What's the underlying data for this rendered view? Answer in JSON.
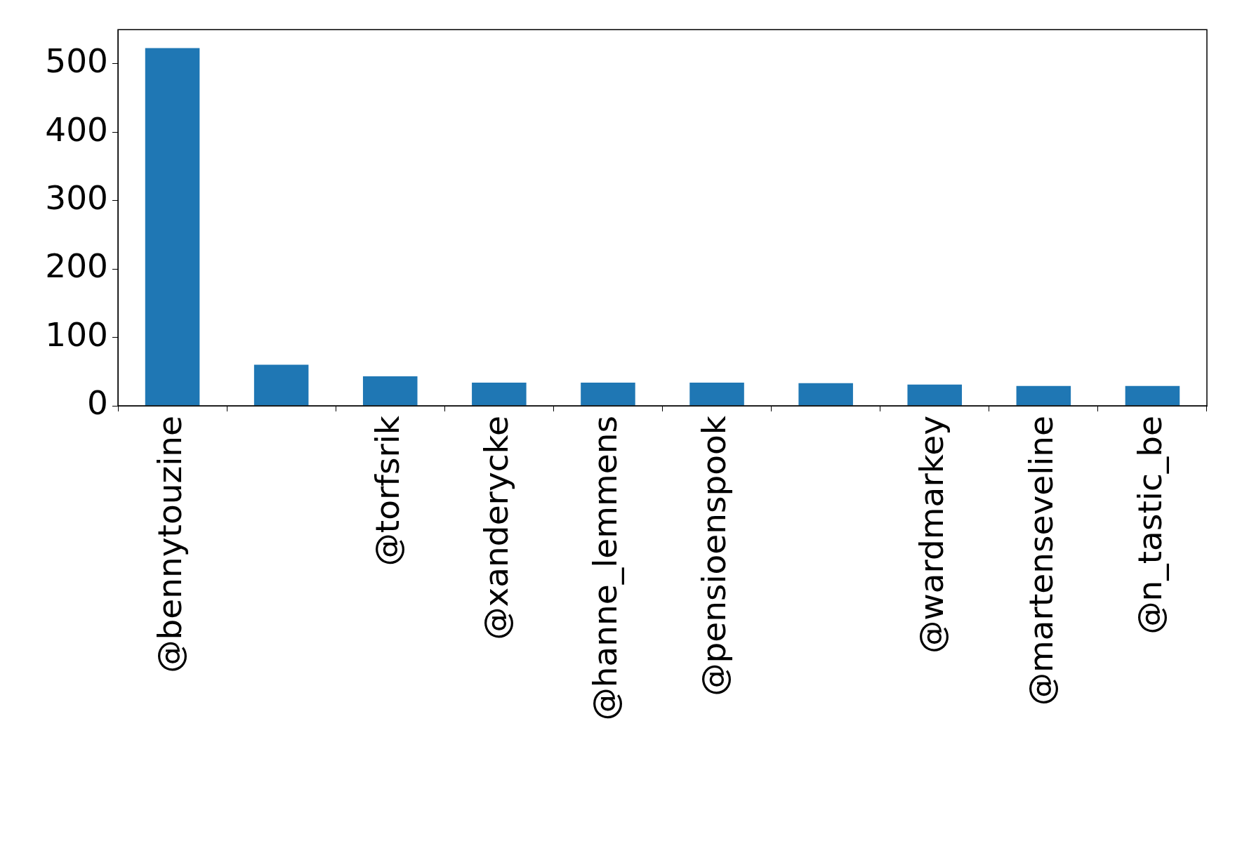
{
  "chart_data": {
    "type": "bar",
    "categories": [
      "@bennytouzine",
      null,
      "@torfsrik",
      "@xanderycke",
      "@hanne_lemmens",
      "@pensioenspook",
      null,
      "@wardmarkey",
      "@martenseveline",
      "@n_tastic_be"
    ],
    "values": [
      523,
      60,
      43,
      34,
      34,
      34,
      33,
      31,
      29,
      29
    ],
    "color": "#1f77b4",
    "ylim": [
      0,
      550
    ],
    "yticks": [
      0,
      100,
      200,
      300,
      400,
      500
    ],
    "grid": false,
    "legend": false
  }
}
